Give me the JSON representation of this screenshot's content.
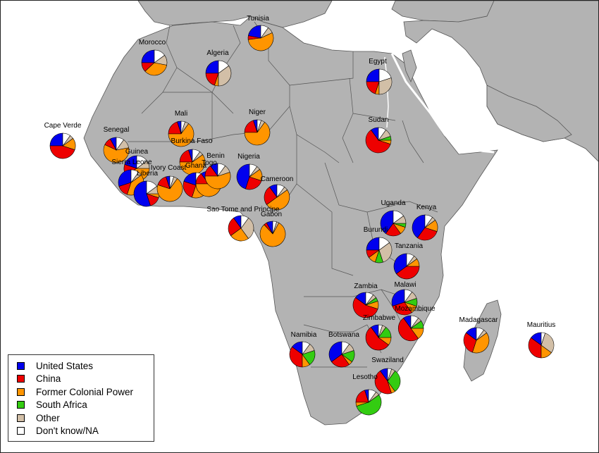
{
  "categories": [
    {
      "key": "us",
      "label": "United States",
      "color": "#0000ee"
    },
    {
      "key": "cn",
      "label": "China",
      "color": "#ee0000"
    },
    {
      "key": "fc",
      "label": "Former Colonial Power",
      "color": "#ff9500"
    },
    {
      "key": "sa",
      "label": "South Africa",
      "color": "#33cc11"
    },
    {
      "key": "ot",
      "label": "Other",
      "color": "#d2bfa7"
    },
    {
      "key": "na",
      "label": "Don't know/NA",
      "color": "#ffffff"
    }
  ],
  "colors": {
    "land": "#b3b3b3",
    "sea": "#ffffff",
    "border": "#555555"
  },
  "countries": [
    {
      "name": "Tunisia",
      "shares": {
        "us": 0.22,
        "cn": 0.05,
        "fc": 0.55,
        "sa": 0.0,
        "ot": 0.08,
        "na": 0.1
      }
    },
    {
      "name": "Morocco",
      "shares": {
        "us": 0.25,
        "cn": 0.12,
        "fc": 0.35,
        "sa": 0.0,
        "ot": 0.13,
        "na": 0.15
      }
    },
    {
      "name": "Algeria",
      "shares": {
        "us": 0.25,
        "cn": 0.2,
        "fc": 0.05,
        "sa": 0.0,
        "ot": 0.35,
        "na": 0.15
      }
    },
    {
      "name": "Egypt",
      "shares": {
        "us": 0.25,
        "cn": 0.2,
        "fc": 0.05,
        "sa": 0.0,
        "ot": 0.3,
        "na": 0.2
      }
    },
    {
      "name": "Cape Verde",
      "shares": {
        "us": 0.25,
        "cn": 0.45,
        "fc": 0.15,
        "sa": 0.0,
        "ot": 0.05,
        "na": 0.1
      }
    },
    {
      "name": "Senegal",
      "shares": {
        "us": 0.08,
        "cn": 0.1,
        "fc": 0.6,
        "sa": 0.0,
        "ot": 0.12,
        "na": 0.1
      }
    },
    {
      "name": "Mali",
      "shares": {
        "us": 0.05,
        "cn": 0.2,
        "fc": 0.65,
        "sa": 0.0,
        "ot": 0.05,
        "na": 0.05
      }
    },
    {
      "name": "Niger",
      "shares": {
        "us": 0.05,
        "cn": 0.2,
        "fc": 0.65,
        "sa": 0.0,
        "ot": 0.05,
        "na": 0.05
      }
    },
    {
      "name": "Burkina Faso",
      "shares": {
        "us": 0.05,
        "cn": 0.2,
        "fc": 0.6,
        "sa": 0.0,
        "ot": 0.05,
        "na": 0.1
      }
    },
    {
      "name": "Guinea",
      "shares": {
        "us": 0.2,
        "cn": 0.15,
        "fc": 0.4,
        "sa": 0.0,
        "ot": 0.1,
        "na": 0.15
      }
    },
    {
      "name": "Sierra Leone",
      "shares": {
        "us": 0.3,
        "cn": 0.15,
        "fc": 0.4,
        "sa": 0.0,
        "ot": 0.05,
        "na": 0.1
      }
    },
    {
      "name": "Liberia",
      "shares": {
        "us": 0.55,
        "cn": 0.15,
        "fc": 0.05,
        "sa": 0.0,
        "ot": 0.1,
        "na": 0.15
      }
    },
    {
      "name": "Ivory Coast",
      "shares": {
        "us": 0.05,
        "cn": 0.15,
        "fc": 0.7,
        "sa": 0.0,
        "ot": 0.05,
        "na": 0.05
      }
    },
    {
      "name": "Ghana",
      "shares": {
        "us": 0.2,
        "cn": 0.25,
        "fc": 0.4,
        "sa": 0.0,
        "ot": 0.05,
        "na": 0.1
      }
    },
    {
      "name": "Togo",
      "shares": {
        "us": 0.1,
        "cn": 0.15,
        "fc": 0.55,
        "sa": 0.0,
        "ot": 0.1,
        "na": 0.1
      }
    },
    {
      "name": "Benin",
      "shares": {
        "us": 0.1,
        "cn": 0.15,
        "fc": 0.55,
        "sa": 0.0,
        "ot": 0.1,
        "na": 0.1
      }
    },
    {
      "name": "Nigeria",
      "shares": {
        "us": 0.45,
        "cn": 0.25,
        "fc": 0.15,
        "sa": 0.0,
        "ot": 0.05,
        "na": 0.1
      }
    },
    {
      "name": "Cameroon",
      "shares": {
        "us": 0.1,
        "cn": 0.25,
        "fc": 0.5,
        "sa": 0.0,
        "ot": 0.05,
        "na": 0.1
      }
    },
    {
      "name": "Sao Tome and Principe",
      "shares": {
        "us": 0.1,
        "cn": 0.25,
        "fc": 0.25,
        "sa": 0.0,
        "ot": 0.3,
        "na": 0.1
      }
    },
    {
      "name": "Gabon",
      "shares": {
        "us": 0.08,
        "cn": 0.04,
        "fc": 0.8,
        "sa": 0.0,
        "ot": 0.03,
        "na": 0.05
      }
    },
    {
      "name": "Sudan",
      "shares": {
        "us": 0.1,
        "cn": 0.6,
        "fc": 0.05,
        "sa": 0.05,
        "ot": 0.1,
        "na": 0.1
      }
    },
    {
      "name": "Uganda",
      "shares": {
        "us": 0.4,
        "cn": 0.2,
        "fc": 0.1,
        "sa": 0.05,
        "ot": 0.1,
        "na": 0.15
      }
    },
    {
      "name": "Kenya",
      "shares": {
        "us": 0.4,
        "cn": 0.3,
        "fc": 0.15,
        "sa": 0.0,
        "ot": 0.05,
        "na": 0.1
      }
    },
    {
      "name": "Burundi",
      "shares": {
        "us": 0.25,
        "cn": 0.1,
        "fc": 0.1,
        "sa": 0.1,
        "ot": 0.3,
        "na": 0.15
      }
    },
    {
      "name": "Tanzania",
      "shares": {
        "us": 0.35,
        "cn": 0.4,
        "fc": 0.1,
        "sa": 0.0,
        "ot": 0.05,
        "na": 0.1
      }
    },
    {
      "name": "Zambia",
      "shares": {
        "us": 0.15,
        "cn": 0.55,
        "fc": 0.1,
        "sa": 0.05,
        "ot": 0.05,
        "na": 0.1
      }
    },
    {
      "name": "Malawi",
      "shares": {
        "us": 0.3,
        "cn": 0.3,
        "fc": 0.1,
        "sa": 0.1,
        "ot": 0.1,
        "na": 0.1
      }
    },
    {
      "name": "Mozambique",
      "shares": {
        "us": 0.1,
        "cn": 0.5,
        "fc": 0.15,
        "sa": 0.1,
        "ot": 0.05,
        "na": 0.1
      }
    },
    {
      "name": "Zimbabwe",
      "shares": {
        "us": 0.1,
        "cn": 0.55,
        "fc": 0.1,
        "sa": 0.15,
        "ot": 0.05,
        "na": 0.05
      }
    },
    {
      "name": "Madagascar",
      "shares": {
        "us": 0.15,
        "cn": 0.3,
        "fc": 0.4,
        "sa": 0.0,
        "ot": 0.05,
        "na": 0.1
      }
    },
    {
      "name": "Mauritius",
      "shares": {
        "us": 0.15,
        "cn": 0.35,
        "fc": 0.15,
        "sa": 0.0,
        "ot": 0.3,
        "na": 0.05
      }
    },
    {
      "name": "Namibia",
      "shares": {
        "us": 0.15,
        "cn": 0.35,
        "fc": 0.1,
        "sa": 0.2,
        "ot": 0.1,
        "na": 0.1
      }
    },
    {
      "name": "Botswana",
      "shares": {
        "us": 0.35,
        "cn": 0.25,
        "fc": 0.05,
        "sa": 0.15,
        "ot": 0.1,
        "na": 0.1
      }
    },
    {
      "name": "Swaziland",
      "shares": {
        "us": 0.1,
        "cn": 0.45,
        "fc": 0.05,
        "sa": 0.3,
        "ot": 0.05,
        "na": 0.05
      }
    },
    {
      "name": "Lesotho",
      "shares": {
        "us": 0.05,
        "cn": 0.2,
        "fc": 0.05,
        "sa": 0.55,
        "ot": 0.05,
        "na": 0.1
      }
    }
  ]
}
